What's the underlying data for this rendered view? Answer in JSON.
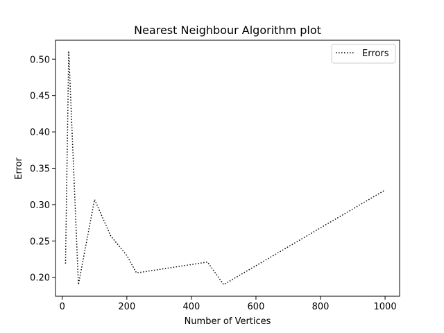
{
  "chart_data": {
    "type": "line",
    "title": "Nearest Neighbour Algorithm plot",
    "xlabel": "Number of Vertices",
    "ylabel": "Error",
    "xlim": [
      -21,
      1045
    ],
    "ylim": [
      0.174,
      0.526
    ],
    "xticks": [
      0,
      200,
      400,
      600,
      800,
      1000
    ],
    "xtick_labels": [
      "0",
      "200",
      "400",
      "600",
      "800",
      "1000"
    ],
    "yticks": [
      0.2,
      0.25,
      0.3,
      0.35,
      0.4,
      0.45,
      0.5
    ],
    "ytick_labels": [
      "0.20",
      "0.25",
      "0.30",
      "0.35",
      "0.40",
      "0.45",
      "0.50"
    ],
    "grid": false,
    "legend_position": "upper right",
    "series": [
      {
        "name": "Errors",
        "color": "#000000",
        "linestyle": "dotted",
        "x": [
          10,
          20,
          50,
          100,
          150,
          200,
          230,
          450,
          500,
          1000
        ],
        "y": [
          0.219,
          0.511,
          0.19,
          0.307,
          0.257,
          0.23,
          0.206,
          0.221,
          0.19,
          0.32
        ]
      }
    ]
  }
}
